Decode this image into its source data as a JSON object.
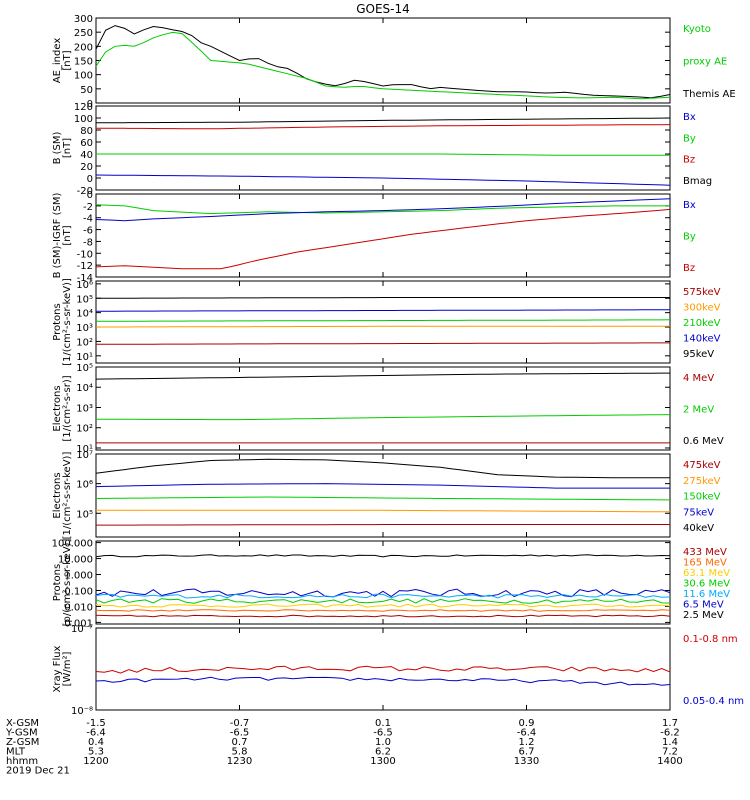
{
  "title": "GOES-14",
  "chart_data": [
    {
      "id": "ae",
      "type": "line",
      "ylabel": [
        "AE_index",
        "[nT]"
      ],
      "ylim": [
        0,
        300
      ],
      "ticks": [
        0,
        50,
        100,
        150,
        200,
        250,
        300
      ],
      "tick_labels": [
        "0",
        "50",
        "100",
        "150",
        "200",
        "250",
        "300"
      ],
      "legend": [
        {
          "text": "Kyoto",
          "color": "#00cc00"
        },
        {
          "text": "proxy AE",
          "color": "#00cc00"
        },
        {
          "text": "Themis AE",
          "color": "#000000"
        }
      ],
      "series": [
        {
          "name": "Themis AE",
          "color": "#000000",
          "x": [
            0,
            0.02,
            0.04,
            0.07,
            0.08,
            0.09,
            0.1,
            0.12,
            0.14,
            0.16,
            0.18,
            0.2,
            0.22,
            0.25,
            0.28,
            0.31,
            0.34,
            0.36,
            0.39,
            0.42,
            0.45,
            0.47,
            0.5,
            0.52,
            0.55,
            0.58,
            0.6,
            0.63,
            0.66,
            0.7,
            0.74,
            0.78,
            0.82,
            0.86,
            0.9,
            0.94,
            0.97,
            1
          ],
          "values": [
            190,
            270,
            275,
            240,
            260,
            255,
            270,
            265,
            255,
            250,
            215,
            200,
            180,
            150,
            160,
            130,
            120,
            90,
            70,
            60,
            80,
            75,
            60,
            65,
            65,
            50,
            55,
            50,
            45,
            40,
            40,
            35,
            38,
            28,
            25,
            22,
            18,
            30
          ]
        },
        {
          "name": "Kyoto proxy AE",
          "color": "#00cc00",
          "x": [
            0,
            0.02,
            0.04,
            0.07,
            0.1,
            0.13,
            0.15,
            0.18,
            0.2,
            0.23,
            0.26,
            0.3,
            0.34,
            0.37,
            0.4,
            0.43,
            0.46,
            0.5,
            0.55,
            0.6,
            0.65,
            0.7,
            0.75,
            0.8,
            0.85,
            0.9,
            0.95,
            1
          ],
          "values": [
            130,
            190,
            205,
            200,
            230,
            250,
            245,
            190,
            150,
            145,
            140,
            120,
            100,
            85,
            60,
            55,
            60,
            50,
            45,
            40,
            35,
            30,
            25,
            20,
            18,
            20,
            15,
            20
          ]
        }
      ]
    },
    {
      "id": "b-sm",
      "type": "line",
      "ylabel": [
        "B (SM)",
        "[nT]"
      ],
      "ylim": [
        -20,
        120
      ],
      "ticks": [
        -20,
        0,
        20,
        40,
        60,
        80,
        100,
        120
      ],
      "tick_labels": [
        "-20",
        "0",
        "20",
        "40",
        "60",
        "80",
        "100",
        "120"
      ],
      "legend": [
        {
          "text": "Bx",
          "color": "#0000cc"
        },
        {
          "text": "By",
          "color": "#00cc00"
        },
        {
          "text": "Bz",
          "color": "#cc0000"
        },
        {
          "text": "Bmag",
          "color": "#000000"
        }
      ],
      "series": [
        {
          "name": "Bmag",
          "color": "#000000",
          "x": [
            0,
            0.25,
            0.5,
            0.75,
            1
          ],
          "values": [
            92,
            93,
            96,
            98,
            100
          ]
        },
        {
          "name": "Bz",
          "color": "#cc0000",
          "x": [
            0,
            0.2,
            0.4,
            0.6,
            0.8,
            1
          ],
          "values": [
            83,
            82,
            85,
            87,
            88,
            89
          ]
        },
        {
          "name": "By",
          "color": "#00cc00",
          "x": [
            0,
            0.3,
            0.6,
            0.8,
            1
          ],
          "values": [
            40,
            40,
            40,
            38,
            38
          ]
        },
        {
          "name": "Bx",
          "color": "#0000cc",
          "x": [
            0,
            0.25,
            0.5,
            0.75,
            1
          ],
          "values": [
            5,
            3,
            0,
            -5,
            -12
          ]
        }
      ]
    },
    {
      "id": "b-igrf",
      "type": "line",
      "ylabel": [
        "B (SM)-IGRF (SM)",
        "[nT]"
      ],
      "ylim": [
        -14,
        0
      ],
      "ticks": [
        -14,
        -12,
        -10,
        -8,
        -6,
        -4,
        -2,
        0
      ],
      "tick_labels": [
        "-14",
        "-12",
        "-10",
        "-8",
        "-6",
        "-4",
        "-2",
        "0"
      ],
      "legend": [
        {
          "text": "Bx",
          "color": "#0000cc"
        },
        {
          "text": "By",
          "color": "#00cc00"
        },
        {
          "text": "Bz",
          "color": "#cc0000"
        }
      ],
      "series": [
        {
          "name": "Bz",
          "color": "#cc0000",
          "x": [
            0,
            0.05,
            0.15,
            0.22,
            0.28,
            0.35,
            0.45,
            0.55,
            0.65,
            0.75,
            0.85,
            0.95,
            1
          ],
          "values": [
            -12.3,
            -12.1,
            -12.6,
            -12.6,
            -11.2,
            -9.8,
            -8.3,
            -6.8,
            -5.6,
            -4.5,
            -3.7,
            -3.0,
            -2.6
          ]
        },
        {
          "name": "By",
          "color": "#00cc00",
          "x": [
            0,
            0.05,
            0.1,
            0.2,
            0.3,
            0.4,
            0.5,
            0.6,
            0.7,
            0.8,
            0.9,
            1
          ],
          "values": [
            -1.8,
            -2.0,
            -2.8,
            -3.3,
            -3.0,
            -3.2,
            -3.0,
            -2.8,
            -2.4,
            -2.2,
            -2.0,
            -2.0
          ]
        },
        {
          "name": "Bx",
          "color": "#0000cc",
          "x": [
            0,
            0.05,
            0.1,
            0.2,
            0.3,
            0.4,
            0.5,
            0.6,
            0.7,
            0.8,
            0.9,
            1
          ],
          "values": [
            -4.3,
            -4.5,
            -4.2,
            -3.8,
            -3.3,
            -3.0,
            -2.8,
            -2.5,
            -2.1,
            -1.6,
            -1.2,
            -0.8
          ]
        }
      ]
    },
    {
      "id": "protons-1",
      "type": "line",
      "log": true,
      "ylabel": [
        "Protons",
        "[1/(cm²-s-sr-keV)]"
      ],
      "ylim": [
        0.5,
        6.2
      ],
      "ticks": [
        1,
        2,
        3,
        4,
        5,
        6
      ],
      "tick_labels": [
        "10¹",
        "10²",
        "10³",
        "10⁴",
        "10⁵",
        "10⁶"
      ],
      "legend": [
        {
          "text": "575keV",
          "color": "#aa0000"
        },
        {
          "text": "300keV",
          "color": "#ff9900"
        },
        {
          "text": "210keV",
          "color": "#00cc00"
        },
        {
          "text": "140keV",
          "color": "#0000cc"
        },
        {
          "text": "95keV",
          "color": "#000000"
        }
      ],
      "series": [
        {
          "name": "95keV",
          "color": "#000000",
          "x": [
            0,
            0.5,
            1
          ],
          "values": [
            5.0,
            5.05,
            5.05
          ]
        },
        {
          "name": "140keV",
          "color": "#0000cc",
          "x": [
            0,
            0.5,
            1
          ],
          "values": [
            4.1,
            4.15,
            4.2
          ]
        },
        {
          "name": "210keV",
          "color": "#00cc00",
          "x": [
            0,
            0.5,
            1
          ],
          "values": [
            3.4,
            3.45,
            3.5
          ]
        },
        {
          "name": "300keV",
          "color": "#ff9900",
          "x": [
            0,
            0.5,
            1
          ],
          "values": [
            3.0,
            3.05,
            3.05
          ]
        },
        {
          "name": "575keV",
          "color": "#aa0000",
          "x": [
            0,
            0.5,
            1
          ],
          "values": [
            1.8,
            1.85,
            1.9
          ]
        }
      ]
    },
    {
      "id": "electrons-1",
      "type": "line",
      "log": true,
      "ylabel": [
        "Electrons",
        "[1/(cm²-s-sr)]"
      ],
      "ylim": [
        0.9,
        5.0
      ],
      "ticks": [
        1,
        2,
        3,
        4,
        5
      ],
      "tick_labels": [
        "10¹",
        "10²",
        "10³",
        "10⁴",
        "10⁵"
      ],
      "legend": [
        {
          "text": "4 MeV",
          "color": "#aa0000"
        },
        {
          "text": "2 MeV",
          "color": "#00cc00"
        },
        {
          "text": "0.6 MeV",
          "color": "#000000"
        }
      ],
      "series": [
        {
          "name": "0.6 MeV",
          "color": "#000000",
          "x": [
            0,
            0.3,
            0.55,
            0.7,
            1
          ],
          "values": [
            4.4,
            4.5,
            4.6,
            4.65,
            4.7
          ]
        },
        {
          "name": "2 MeV",
          "color": "#00cc00",
          "x": [
            0,
            0.25,
            0.5,
            0.75,
            1
          ],
          "values": [
            2.42,
            2.4,
            2.5,
            2.58,
            2.65
          ]
        },
        {
          "name": "4 MeV",
          "color": "#aa0000",
          "x": [
            0,
            0.5,
            1
          ],
          "values": [
            1.25,
            1.25,
            1.25
          ]
        }
      ]
    },
    {
      "id": "electrons-2",
      "type": "line",
      "log": true,
      "ylabel": [
        "Electrons",
        "[1/(cm²-s-sr-keV)]"
      ],
      "ylim": [
        4.2,
        7.0
      ],
      "ticks": [
        5,
        6,
        7
      ],
      "tick_labels": [
        "10⁵",
        "10⁶",
        "10⁷"
      ],
      "legend": [
        {
          "text": "475keV",
          "color": "#aa0000"
        },
        {
          "text": "275keV",
          "color": "#ff9900"
        },
        {
          "text": "150keV",
          "color": "#00cc00"
        },
        {
          "text": "75keV",
          "color": "#0000cc"
        },
        {
          "text": "40keV",
          "color": "#000000"
        }
      ],
      "series": [
        {
          "name": "40keV",
          "color": "#000000",
          "x": [
            0,
            0.1,
            0.2,
            0.3,
            0.4,
            0.5,
            0.6,
            0.7,
            0.8,
            0.9,
            1
          ],
          "values": [
            6.35,
            6.6,
            6.78,
            6.82,
            6.8,
            6.7,
            6.55,
            6.3,
            6.22,
            6.2,
            6.2
          ]
        },
        {
          "name": "75keV",
          "color": "#0000cc",
          "x": [
            0,
            0.2,
            0.4,
            0.6,
            0.8,
            1
          ],
          "values": [
            5.9,
            5.98,
            6.0,
            5.95,
            5.85,
            5.85
          ]
        },
        {
          "name": "150keV",
          "color": "#00cc00",
          "x": [
            0,
            0.3,
            0.6,
            1
          ],
          "values": [
            5.5,
            5.55,
            5.5,
            5.45
          ]
        },
        {
          "name": "275keV",
          "color": "#ff9900",
          "x": [
            0,
            0.5,
            1
          ],
          "values": [
            5.1,
            5.1,
            5.05
          ]
        },
        {
          "name": "475keV",
          "color": "#aa0000",
          "x": [
            0,
            0.5,
            1
          ],
          "values": [
            4.6,
            4.62,
            4.62
          ]
        }
      ]
    },
    {
      "id": "protons-2",
      "type": "line",
      "log": true,
      "ylabel": [
        "Protons",
        "[p/(cm²-s-sr-keV)]"
      ],
      "ylim": [
        -3.1,
        2.1
      ],
      "ticks": [
        -3,
        -2,
        -1,
        0,
        1,
        2
      ],
      "tick_labels": [
        "0.001",
        "0.010",
        "0.100",
        "1.000",
        "10.000",
        "100.000"
      ],
      "legend": [
        {
          "text": "433 MeV",
          "color": "#aa0000"
        },
        {
          "text": "165 MeV",
          "color": "#ff6600"
        },
        {
          "text": "63.1 MeV",
          "color": "#ffcc00"
        },
        {
          "text": "30.6 MeV",
          "color": "#00cc00"
        },
        {
          "text": "11.6 MeV",
          "color": "#00aaff"
        },
        {
          "text": "6.5 MeV",
          "color": "#0000cc"
        },
        {
          "text": "2.5 MeV",
          "color": "#000000"
        }
      ],
      "series": [
        {
          "name": "2.5 MeV",
          "color": "#000000",
          "x": [
            0,
            0.25,
            0.5,
            0.75,
            1
          ],
          "values": [
            1.15,
            1.2,
            1.15,
            1.2,
            1.2
          ],
          "noise": 0.05
        },
        {
          "name": "6.5 MeV",
          "color": "#0000cc",
          "x": [
            0,
            1
          ],
          "values": [
            -1.15,
            -1.15
          ],
          "noise": 0.25
        },
        {
          "name": "11.6 MeV",
          "color": "#00aaff",
          "x": [
            0,
            1
          ],
          "values": [
            -1.35,
            -1.35
          ],
          "noise": 0.12
        },
        {
          "name": "30.6 MeV",
          "color": "#00cc00",
          "x": [
            0,
            1
          ],
          "values": [
            -1.65,
            -1.65
          ],
          "noise": 0.15
        },
        {
          "name": "63.1 MeV",
          "color": "#ffcc00",
          "x": [
            0,
            1
          ],
          "values": [
            -1.95,
            -1.95
          ],
          "noise": 0.1
        },
        {
          "name": "165 MeV",
          "color": "#ff6600",
          "x": [
            0,
            1
          ],
          "values": [
            -2.25,
            -2.25
          ],
          "noise": 0.05
        },
        {
          "name": "433 MeV",
          "color": "#aa0000",
          "x": [
            0,
            1
          ],
          "values": [
            -2.6,
            -2.6
          ],
          "noise": 0.05
        }
      ]
    },
    {
      "id": "xray",
      "type": "line",
      "log": true,
      "ylabel": [
        "Xray Flux",
        "[W/m²]"
      ],
      "ylim": [
        -8,
        -7
      ],
      "ticks": [
        -8,
        -7
      ],
      "tick_labels": [
        "10⁻⁸",
        "10⁻⁷"
      ],
      "legend": [
        {
          "text": "0.1-0.8 nm",
          "color": "#cc0000"
        },
        {
          "text": "0.05-0.4 nm",
          "color": "#0000cc"
        }
      ],
      "series": [
        {
          "name": "0.1-0.8 nm",
          "color": "#cc0000",
          "x": [
            0,
            0.2,
            0.4,
            0.6,
            0.8,
            1
          ],
          "values": [
            -7.53,
            -7.5,
            -7.49,
            -7.5,
            -7.5,
            -7.52
          ],
          "noise": 0.03
        },
        {
          "name": "0.05-0.4 nm",
          "color": "#0000cc",
          "x": [
            0,
            0.2,
            0.4,
            0.6,
            0.8,
            1
          ],
          "values": [
            -7.65,
            -7.62,
            -7.62,
            -7.63,
            -7.65,
            -7.7
          ],
          "noise": 0.02
        }
      ]
    }
  ],
  "x_axis": {
    "tick_rows": [
      {
        "label": "X-GSM",
        "values": [
          "-1.5",
          "-0.7",
          "0.1",
          "0.9",
          "1.7"
        ]
      },
      {
        "label": "Y-GSM",
        "values": [
          "-6.4",
          "-6.5",
          "-6.5",
          "-6.4",
          "-6.2"
        ]
      },
      {
        "label": "Z-GSM",
        "values": [
          "0.4",
          "0.7",
          "1.0",
          "1.2",
          "1.4"
        ]
      },
      {
        "label": "MLT",
        "values": [
          "5.3",
          "5.8",
          "6.2",
          "6.7",
          "7.2"
        ]
      },
      {
        "label": "hhmm",
        "values": [
          "1200",
          "1230",
          "1300",
          "1330",
          "1400"
        ]
      }
    ],
    "date": "2019 Dec 21"
  }
}
